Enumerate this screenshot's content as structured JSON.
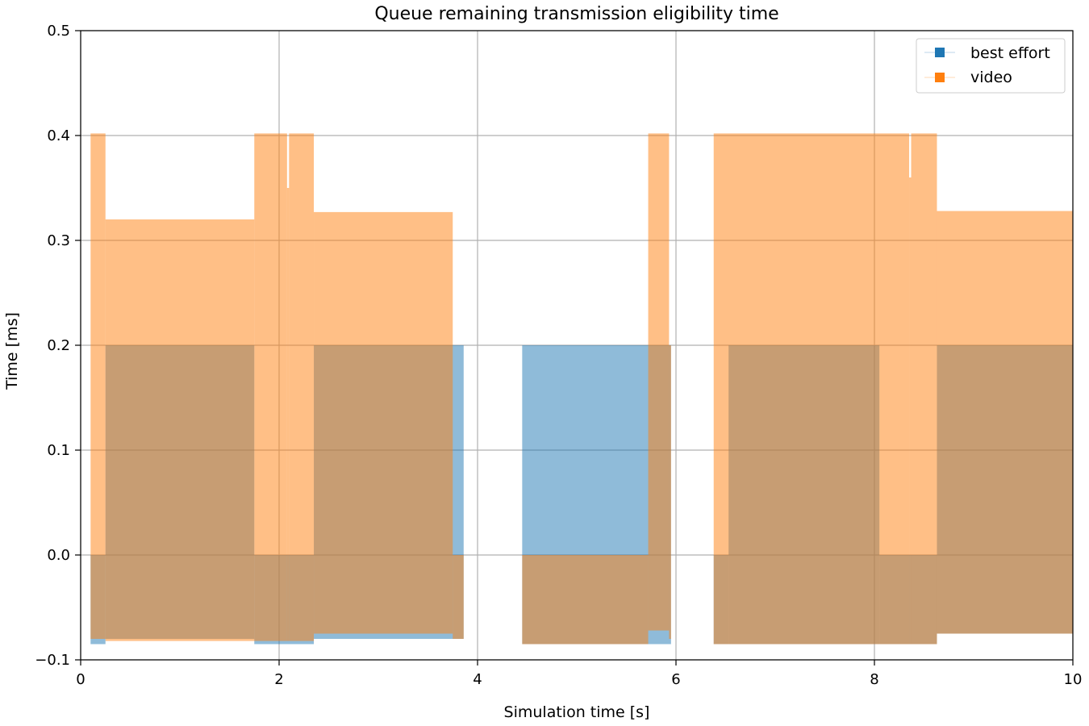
{
  "chart_data": {
    "type": "area",
    "title": "Queue remaining transmission eligibility time",
    "xlabel": "Simulation time [s]",
    "ylabel": "Time [ms]",
    "xlim": [
      0,
      10
    ],
    "ylim": [
      -0.1,
      0.5
    ],
    "xticks": [
      0,
      2,
      4,
      6,
      8,
      10
    ],
    "xtick_labels": [
      "0",
      "2",
      "4",
      "6",
      "8",
      "10"
    ],
    "yticks": [
      -0.1,
      0.0,
      0.1,
      0.2,
      0.3,
      0.4,
      0.5
    ],
    "ytick_labels": [
      "−0.1",
      "0.0",
      "0.1",
      "0.2",
      "0.3",
      "0.4",
      "0.5"
    ],
    "grid": true,
    "legend": "upper-right",
    "series": [
      {
        "name": "best effort",
        "color": "#1f77b4",
        "alpha": 0.5,
        "segments": [
          {
            "x0": 0.1,
            "x1": 0.25,
            "top": 0.0,
            "bottom": -0.085
          },
          {
            "x0": 0.25,
            "x1": 1.75,
            "top": 0.2,
            "bottom": -0.08
          },
          {
            "x0": 1.75,
            "x1": 2.35,
            "top": 0.0,
            "bottom": -0.085
          },
          {
            "x0": 2.35,
            "x1": 3.86,
            "top": 0.2,
            "bottom": -0.08
          },
          {
            "x0": 4.45,
            "x1": 5.95,
            "top": 0.2,
            "bottom": -0.085
          },
          {
            "x0": 6.38,
            "x1": 6.53,
            "top": 0.0,
            "bottom": -0.085
          },
          {
            "x0": 6.53,
            "x1": 8.05,
            "top": 0.2,
            "bottom": -0.085
          },
          {
            "x0": 8.05,
            "x1": 8.63,
            "top": 0.0,
            "bottom": -0.085
          },
          {
            "x0": 8.63,
            "x1": 10.0,
            "top": 0.2,
            "bottom": -0.075
          }
        ]
      },
      {
        "name": "video",
        "color": "#ff7f0e",
        "alpha": 0.5,
        "segments": [
          {
            "x0": 0.1,
            "x1": 0.25,
            "top": 0.402,
            "bottom": -0.08
          },
          {
            "x0": 0.25,
            "x1": 1.75,
            "top": 0.32,
            "bottom": -0.082
          },
          {
            "x0": 1.75,
            "x1": 2.08,
            "top": 0.402,
            "bottom": -0.082
          },
          {
            "x0": 2.08,
            "x1": 2.1,
            "top": 0.35,
            "bottom": -0.082
          },
          {
            "x0": 2.1,
            "x1": 2.35,
            "top": 0.402,
            "bottom": -0.082
          },
          {
            "x0": 2.35,
            "x1": 3.75,
            "top": 0.327,
            "bottom": -0.075
          },
          {
            "x0": 3.75,
            "x1": 3.86,
            "top": 0.0,
            "bottom": -0.08
          },
          {
            "x0": 4.45,
            "x1": 5.72,
            "top": 0.0,
            "bottom": -0.085
          },
          {
            "x0": 5.72,
            "x1": 5.93,
            "top": 0.402,
            "bottom": -0.072
          },
          {
            "x0": 5.93,
            "x1": 5.95,
            "top": 0.2,
            "bottom": -0.08
          },
          {
            "x0": 6.38,
            "x1": 8.35,
            "top": 0.402,
            "bottom": -0.085
          },
          {
            "x0": 8.35,
            "x1": 8.37,
            "top": 0.36,
            "bottom": -0.085
          },
          {
            "x0": 8.37,
            "x1": 8.63,
            "top": 0.402,
            "bottom": -0.085
          },
          {
            "x0": 8.63,
            "x1": 10.0,
            "top": 0.328,
            "bottom": -0.075
          }
        ]
      }
    ]
  }
}
